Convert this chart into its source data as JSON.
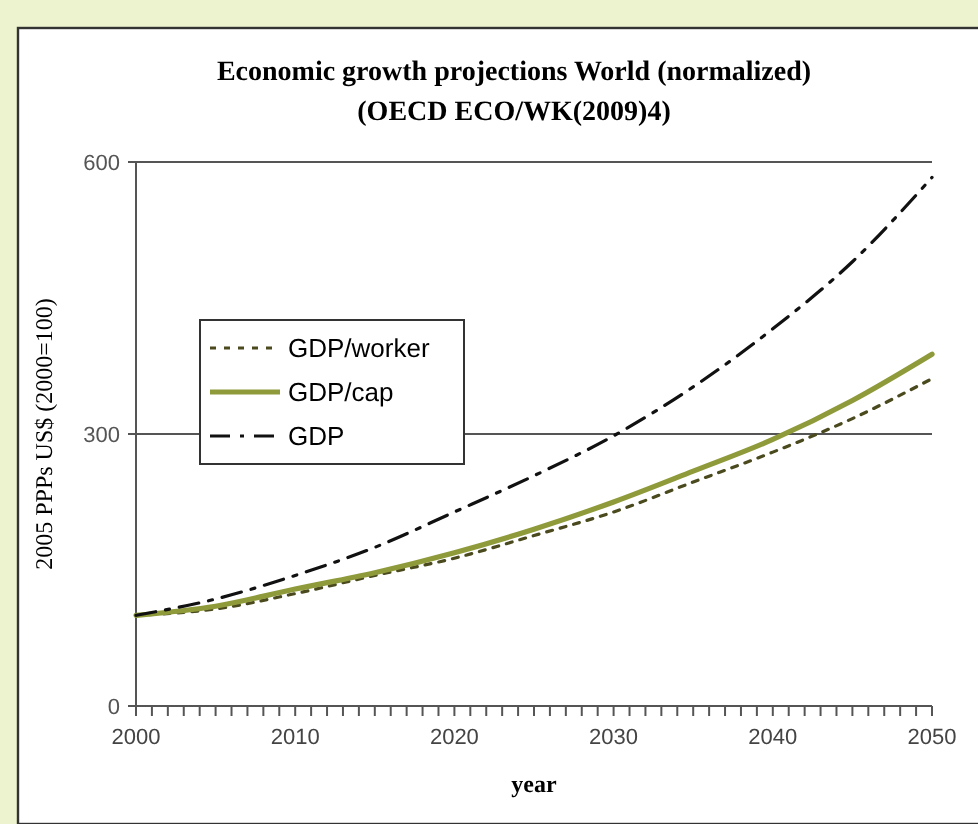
{
  "chart_data": {
    "type": "line",
    "title": "Economic growth projections World (normalized)",
    "subtitle": "(OECD ECO/WK(2009)4)",
    "xlabel": "year",
    "ylabel": "2005 PPPs US$ (2000=100)",
    "x": [
      2000,
      2005,
      2010,
      2015,
      2020,
      2025,
      2030,
      2035,
      2040,
      2045,
      2050
    ],
    "series": [
      {
        "name": "GDP/worker",
        "color": "#4a4a1e",
        "line_style": "dotted",
        "values": [
          100,
          107,
          124,
          144,
          163,
          188,
          214,
          247,
          280,
          317,
          361
        ]
      },
      {
        "name": "GDP/cap",
        "color": "#8f9a3a",
        "line_style": "solid",
        "values": [
          100,
          110,
          129,
          147,
          169,
          195,
          225,
          259,
          294,
          337,
          388
        ]
      },
      {
        "name": "GDP",
        "color": "#111111",
        "line_style": "dashed",
        "values": [
          100,
          118,
          144,
          175,
          214,
          254,
          298,
          352,
          416,
          490,
          583
        ]
      }
    ],
    "xlim": [
      2000,
      2050
    ],
    "xticks": [
      2000,
      2010,
      2020,
      2030,
      2040,
      2050
    ],
    "ylim": [
      0,
      600
    ],
    "yticks": [
      0,
      300,
      600
    ],
    "grid": "y",
    "legend": "left"
  }
}
